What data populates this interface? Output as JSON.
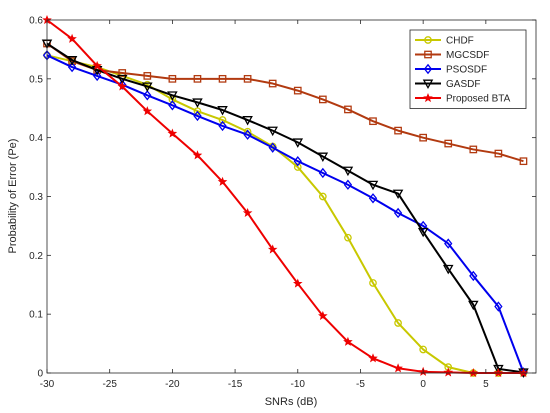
{
  "chart_data": {
    "type": "line",
    "xlabel": "SNRs (dB)",
    "ylabel": "Probability of Error (Pe)",
    "xlim": [
      -30,
      9
    ],
    "ylim": [
      0,
      0.6
    ],
    "xticks": [
      -30,
      -25,
      -20,
      -15,
      -10,
      -5,
      0,
      5
    ],
    "yticks": [
      0,
      0.1,
      0.2,
      0.3,
      0.4,
      0.5,
      0.6
    ],
    "xtick_labels": [
      "-30",
      "-25",
      "-20",
      "-15",
      "-10",
      "-5",
      "0",
      "5"
    ],
    "ytick_labels": [
      "0",
      "0.1",
      "0.2",
      "0.3",
      "0.4",
      "0.5",
      "0.6"
    ],
    "grid": false,
    "legend_position": "top-right",
    "series": [
      {
        "name": "CHDF",
        "color": "#c8c800",
        "marker": "circle",
        "x": [
          -30,
          -28,
          -26,
          -24,
          -22,
          -20,
          -18,
          -16,
          -14,
          -12,
          -10,
          -8,
          -6,
          -4,
          -2,
          0,
          2,
          4,
          6,
          8
        ],
        "y": [
          0.54,
          0.53,
          0.52,
          0.505,
          0.49,
          0.465,
          0.445,
          0.43,
          0.41,
          0.385,
          0.35,
          0.3,
          0.23,
          0.153,
          0.085,
          0.04,
          0.01,
          0,
          0,
          0
        ]
      },
      {
        "name": "MGCSDF",
        "color": "#b23a10",
        "marker": "square",
        "x": [
          -30,
          -28,
          -26,
          -24,
          -22,
          -20,
          -18,
          -16,
          -14,
          -12,
          -10,
          -8,
          -6,
          -4,
          -2,
          0,
          2,
          4,
          6,
          8
        ],
        "y": [
          0.56,
          0.53,
          0.515,
          0.51,
          0.505,
          0.5,
          0.5,
          0.5,
          0.5,
          0.492,
          0.48,
          0.465,
          0.448,
          0.428,
          0.412,
          0.4,
          0.39,
          0.38,
          0.373,
          0.36
        ]
      },
      {
        "name": "PSOSDF",
        "color": "#0000ee",
        "marker": "diamond",
        "x": [
          -30,
          -28,
          -26,
          -24,
          -22,
          -20,
          -18,
          -16,
          -14,
          -12,
          -10,
          -8,
          -6,
          -4,
          -2,
          0,
          2,
          4,
          6,
          8
        ],
        "y": [
          0.54,
          0.52,
          0.505,
          0.49,
          0.472,
          0.455,
          0.437,
          0.42,
          0.405,
          0.383,
          0.36,
          0.34,
          0.32,
          0.297,
          0.272,
          0.25,
          0.22,
          0.165,
          0.113,
          0.001
        ]
      },
      {
        "name": "GASDF",
        "color": "#000000",
        "marker": "triangle-down",
        "x": [
          -30,
          -28,
          -26,
          -24,
          -22,
          -20,
          -18,
          -16,
          -14,
          -12,
          -10,
          -8,
          -6,
          -4,
          -2,
          0,
          2,
          4,
          6,
          8
        ],
        "y": [
          0.56,
          0.532,
          0.515,
          0.5,
          0.487,
          0.472,
          0.46,
          0.447,
          0.43,
          0.412,
          0.392,
          0.368,
          0.344,
          0.32,
          0.305,
          0.24,
          0.177,
          0.116,
          0.007,
          0.001
        ]
      },
      {
        "name": "Proposed BTA",
        "color": "#ee0000",
        "marker": "star",
        "x": [
          -30,
          -28,
          -26,
          -24,
          -22,
          -20,
          -18,
          -16,
          -14,
          -12,
          -10,
          -8,
          -6,
          -4,
          -2,
          0,
          2,
          4,
          6,
          8
        ],
        "y": [
          0.6,
          0.568,
          0.522,
          0.487,
          0.445,
          0.407,
          0.37,
          0.325,
          0.272,
          0.21,
          0.152,
          0.097,
          0.053,
          0.025,
          0.008,
          0.002,
          0.001,
          0,
          0,
          0
        ]
      }
    ]
  }
}
